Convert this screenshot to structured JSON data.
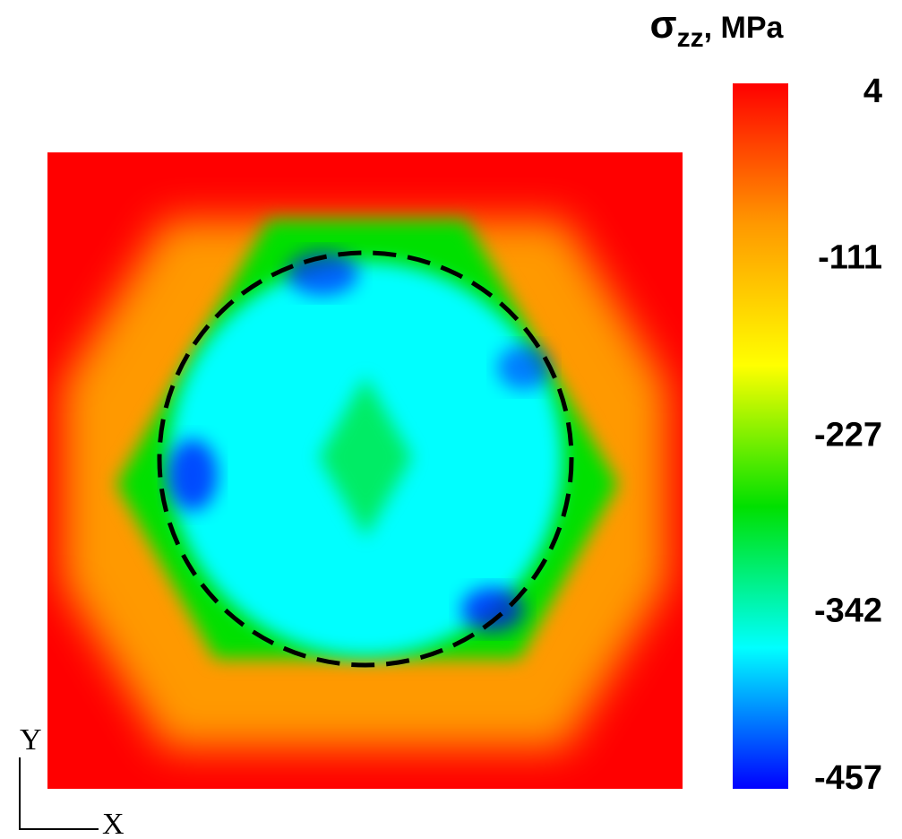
{
  "chart_data": {
    "type": "contour",
    "title": {
      "symbol": "σ",
      "subscript": "zz",
      "unit": ", MPa"
    },
    "x_label": "X",
    "y_label": "Y",
    "clim": [
      -457,
      4
    ],
    "cticks": [
      4,
      -111,
      -227,
      -342,
      -457
    ],
    "colormap": [
      "#ff0000",
      "#ff9900",
      "#ffff00",
      "#00e000",
      "#00ffff",
      "#0000ff"
    ]
  }
}
